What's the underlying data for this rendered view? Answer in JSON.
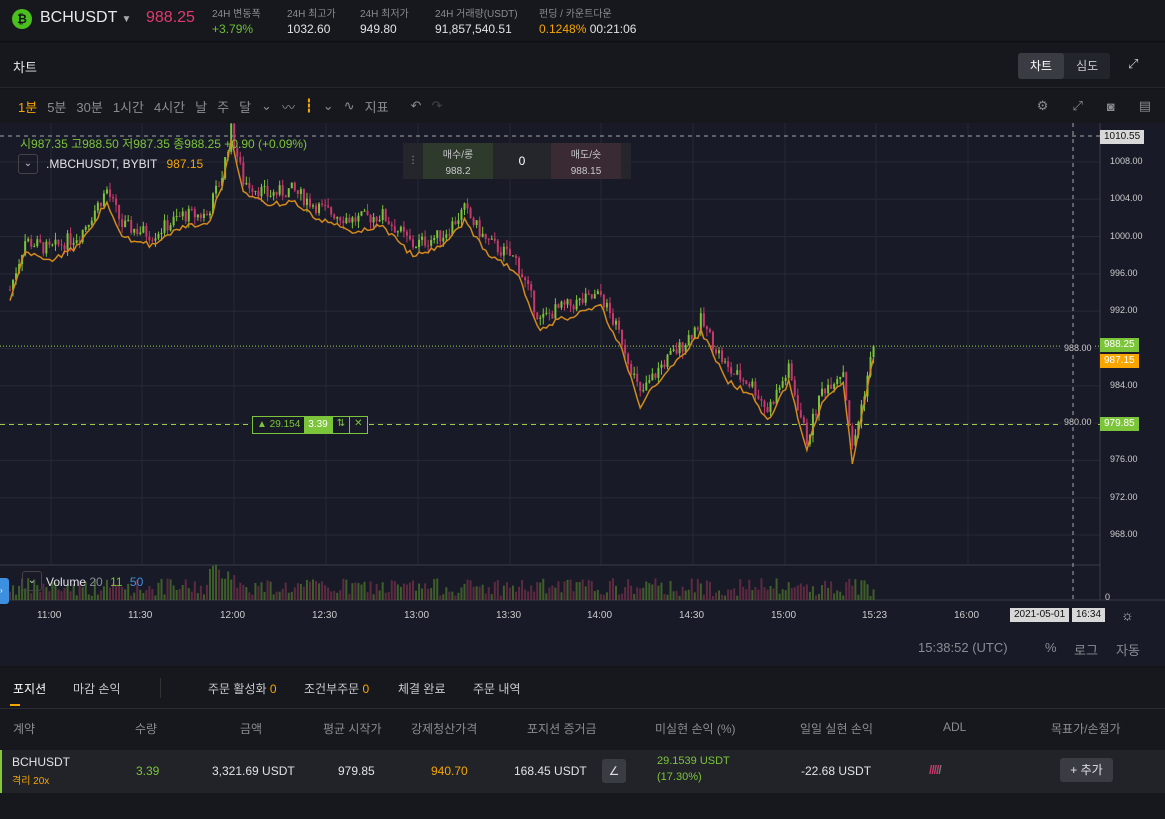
{
  "header": {
    "coin_icon": "bitcoin-cash-icon",
    "symbol": "BCHUSDT",
    "last_price": "988.25",
    "stats": [
      {
        "label": "24H 변동폭",
        "value": "+3.79%"
      },
      {
        "label": "24H 최고가",
        "value": "1032.60"
      },
      {
        "label": "24H 최저가",
        "value": "949.80"
      },
      {
        "label": "24H 거래량(USDT)",
        "value": "91,857,540.51"
      },
      {
        "label": "펀딩 / 카운트다운",
        "value": "0.1248%",
        "value2": "00:21:06"
      }
    ]
  },
  "chart_header": {
    "title": "차트",
    "views": [
      "차트",
      "심도"
    ]
  },
  "toolbar": {
    "intervals": [
      "1분",
      "5분",
      "30분",
      "1시간",
      "4시간",
      "날",
      "주",
      "달"
    ],
    "indicator_label": "지표"
  },
  "legend": {
    "ohlc": "시987.35  고988.50  저987.35  종988.25  +0.90 (+0.09%)",
    "index_name": ".MBCHUSDT, BYBIT",
    "index_value": "987.15",
    "volume_label": "Volume",
    "vol_p1": "20",
    "vol_p2": "11",
    "vol_p3": "50"
  },
  "order_widget": {
    "buy_label": "매수/롱",
    "buy_price": "988.2",
    "spread": "0",
    "sell_label": "매도/숏",
    "sell_price": "988.15"
  },
  "position_line": {
    "pnl": "▲ 29.154",
    "qty": "3.39"
  },
  "price_axis": {
    "ticks": [
      "1008.00",
      "1004.00",
      "1000.00",
      "996.00",
      "992.00",
      "988.00",
      "984.00",
      "980.00",
      "976.00",
      "972.00",
      "968.00"
    ],
    "top_label": "1010.55",
    "last_label": "988.25",
    "index_label": "987.15",
    "entry_label": "979.85",
    "volume_zero": "0"
  },
  "time_axis": {
    "ticks": [
      "11:00",
      "11:30",
      "12:00",
      "12:30",
      "13:00",
      "13:30",
      "14:00",
      "14:30",
      "15:00",
      "15:23",
      "16:00"
    ],
    "cursor_date": "2021-05-01",
    "cursor_time": "16:34"
  },
  "footer": {
    "clock": "15:38:52 (UTC)",
    "pct": "%",
    "log": "로그",
    "auto": "자동"
  },
  "chart_data": {
    "type": "candlestick",
    "ylim": [
      966,
      1012
    ],
    "times_min": [
      0,
      5,
      13,
      23,
      32,
      37,
      47,
      57,
      65,
      70,
      73,
      77,
      85,
      93,
      103,
      113,
      123,
      133,
      143,
      150,
      157,
      167,
      175,
      180,
      190,
      195,
      202,
      208,
      215,
      222,
      228,
      237,
      245,
      250,
      257,
      263,
      268,
      275,
      278,
      285
    ],
    "close": [
      994.3,
      999.6,
      998.6,
      1000.2,
      1005,
      1001.2,
      1000.2,
      1002.3,
      1002.3,
      1006.6,
      1011.4,
      1006,
      1004.5,
      1005,
      1002.9,
      1001.8,
      1002.3,
      999.1,
      1000.2,
      1002.9,
      999.6,
      997.5,
      991,
      992.1,
      993.2,
      993.7,
      988.9,
      983,
      986.2,
      988.4,
      991,
      985.7,
      984.1,
      981.4,
      985.7,
      978.2,
      983.5,
      985.7,
      977.1,
      988.25
    ]
  },
  "positions": {
    "tabs": [
      {
        "label": "포지션"
      },
      {
        "label": "마감 손익"
      },
      {
        "label": "주문 활성화",
        "count": "0"
      },
      {
        "label": "조건부주문",
        "count": "0"
      },
      {
        "label": "체결 완료"
      },
      {
        "label": "주문 내역"
      }
    ],
    "columns": [
      "계약",
      "수량",
      "금액",
      "평균 시작가",
      "강제청산가격",
      "포지션 증거금",
      "미실현 손익 (%)",
      "일일 실현 손익",
      "ADL",
      "목표가/손절가"
    ],
    "row": {
      "contract": "BCHUSDT",
      "mode": "격리 20x",
      "qty": "3.39",
      "value": "3,321.69  USDT",
      "entry": "979.85",
      "liq": "940.70",
      "margin": "168.45 USDT",
      "upnl": "29.1539 USDT",
      "upnl_pct": "(17.30%)",
      "daily": "-22.68 USDT",
      "add_label": "추가"
    }
  },
  "colors": {
    "up": "#7cc43a",
    "down": "#c8386a",
    "accent": "#f7a600",
    "index": "#d4891c"
  }
}
